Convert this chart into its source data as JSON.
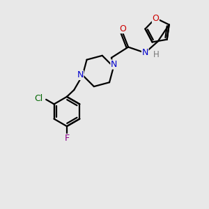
{
  "background_color": "#e8e8e8",
  "bond_color": "#000000",
  "atom_colors": {
    "O": "#cc0000",
    "N": "#0000cc",
    "Cl": "#006600",
    "F": "#880088",
    "H": "#777777",
    "C": "#000000"
  },
  "line_width": 1.6,
  "fig_size": [
    3.0,
    3.0
  ],
  "dpi": 100
}
